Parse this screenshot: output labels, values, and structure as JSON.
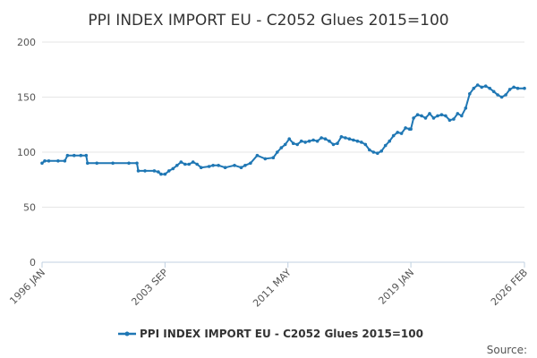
{
  "chart_data": {
    "type": "line",
    "title": "PPI INDEX IMPORT EU - C2052 Glues 2015=100",
    "xlabel": "",
    "ylabel": "",
    "ylim": [
      0,
      200
    ],
    "yticks": [
      "0",
      "50",
      "100",
      "150",
      "200"
    ],
    "xticks": [
      "1996 JAN",
      "2003 SEP",
      "2011 MAY",
      "2019 JAN",
      "2026 FEB"
    ],
    "grid": true,
    "legend": "bottom",
    "source_label": "Source:",
    "line_color": "#1f77b4",
    "series": [
      {
        "name": "PPI INDEX IMPORT EU - C2052 Glues 2015=100",
        "points": [
          [
            "1996-01",
            90
          ],
          [
            "1996-03",
            92
          ],
          [
            "1996-06",
            92
          ],
          [
            "1997-01",
            92
          ],
          [
            "1997-06",
            92
          ],
          [
            "1997-08",
            97
          ],
          [
            "1998-01",
            97
          ],
          [
            "1998-06",
            97
          ],
          [
            "1998-10",
            97
          ],
          [
            "1998-11",
            90
          ],
          [
            "1999-06",
            90
          ],
          [
            "2000-06",
            90
          ],
          [
            "2001-06",
            90
          ],
          [
            "2001-12",
            90
          ],
          [
            "2002-01",
            83
          ],
          [
            "2002-06",
            83
          ],
          [
            "2003-01",
            83
          ],
          [
            "2003-04",
            82
          ],
          [
            "2003-06",
            80
          ],
          [
            "2003-09",
            80
          ],
          [
            "2003-12",
            83
          ],
          [
            "2004-03",
            85
          ],
          [
            "2004-06",
            88
          ],
          [
            "2004-09",
            91
          ],
          [
            "2004-12",
            89
          ],
          [
            "2005-03",
            89
          ],
          [
            "2005-06",
            91
          ],
          [
            "2005-09",
            89
          ],
          [
            "2005-12",
            86
          ],
          [
            "2006-06",
            87
          ],
          [
            "2006-09",
            88
          ],
          [
            "2007-01",
            88
          ],
          [
            "2007-06",
            86
          ],
          [
            "2008-01",
            88
          ],
          [
            "2008-06",
            86
          ],
          [
            "2008-09",
            88
          ],
          [
            "2009-01",
            90
          ],
          [
            "2009-06",
            97
          ],
          [
            "2009-12",
            94
          ],
          [
            "2010-06",
            95
          ],
          [
            "2010-09",
            100
          ],
          [
            "2010-12",
            104
          ],
          [
            "2011-03",
            107
          ],
          [
            "2011-06",
            112
          ],
          [
            "2011-09",
            108
          ],
          [
            "2011-12",
            107
          ],
          [
            "2012-03",
            110
          ],
          [
            "2012-06",
            109
          ],
          [
            "2012-09",
            110
          ],
          [
            "2012-12",
            111
          ],
          [
            "2013-03",
            110
          ],
          [
            "2013-06",
            113
          ],
          [
            "2013-09",
            112
          ],
          [
            "2013-12",
            110
          ],
          [
            "2014-03",
            107
          ],
          [
            "2014-06",
            108
          ],
          [
            "2014-09",
            114
          ],
          [
            "2014-12",
            113
          ],
          [
            "2015-03",
            112
          ],
          [
            "2015-06",
            111
          ],
          [
            "2015-09",
            110
          ],
          [
            "2015-12",
            109
          ],
          [
            "2016-03",
            107
          ],
          [
            "2016-06",
            102
          ],
          [
            "2016-09",
            100
          ],
          [
            "2016-12",
            99
          ],
          [
            "2017-03",
            101
          ],
          [
            "2017-06",
            106
          ],
          [
            "2017-09",
            110
          ],
          [
            "2017-12",
            115
          ],
          [
            "2018-03",
            118
          ],
          [
            "2018-06",
            117
          ],
          [
            "2018-09",
            122
          ],
          [
            "2018-12",
            121
          ],
          [
            "2019-01",
            121
          ],
          [
            "2019-03",
            131
          ],
          [
            "2019-06",
            134
          ],
          [
            "2019-09",
            133
          ],
          [
            "2019-12",
            131
          ],
          [
            "2020-03",
            135
          ],
          [
            "2020-06",
            131
          ],
          [
            "2020-09",
            133
          ],
          [
            "2020-12",
            134
          ],
          [
            "2021-03",
            133
          ],
          [
            "2021-06",
            129
          ],
          [
            "2021-09",
            130
          ],
          [
            "2021-12",
            135
          ],
          [
            "2022-03",
            133
          ],
          [
            "2022-06",
            140
          ],
          [
            "2022-09",
            153
          ],
          [
            "2022-12",
            158
          ],
          [
            "2023-03",
            161
          ],
          [
            "2023-06",
            159
          ],
          [
            "2023-09",
            160
          ],
          [
            "2023-12",
            158
          ],
          [
            "2024-03",
            155
          ],
          [
            "2024-06",
            152
          ],
          [
            "2024-09",
            150
          ],
          [
            "2024-12",
            152
          ],
          [
            "2025-03",
            157
          ],
          [
            "2025-06",
            159
          ],
          [
            "2025-09",
            158
          ],
          [
            "2026-02",
            158
          ]
        ]
      }
    ]
  }
}
